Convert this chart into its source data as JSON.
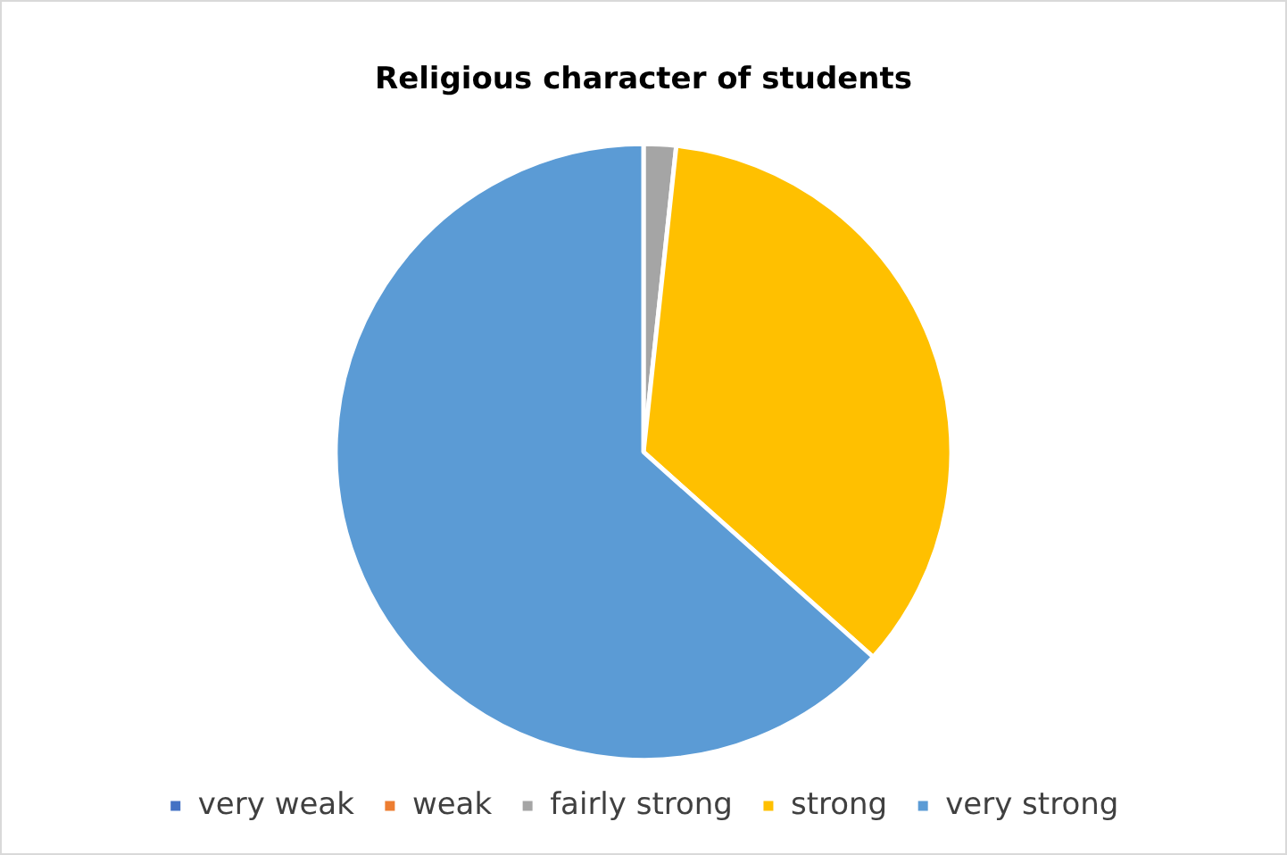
{
  "chart_data": {
    "type": "pie",
    "title": "Religious character of students",
    "categories": [
      "very weak",
      "weak",
      "fairly strong",
      "strong",
      "very strong"
    ],
    "values": [
      0,
      0,
      1.7,
      34.9,
      63.4
    ],
    "colors": [
      "#4472c4",
      "#ed7d31",
      "#a5a5a5",
      "#ffc000",
      "#5b9bd5"
    ],
    "legend": "bottom"
  }
}
